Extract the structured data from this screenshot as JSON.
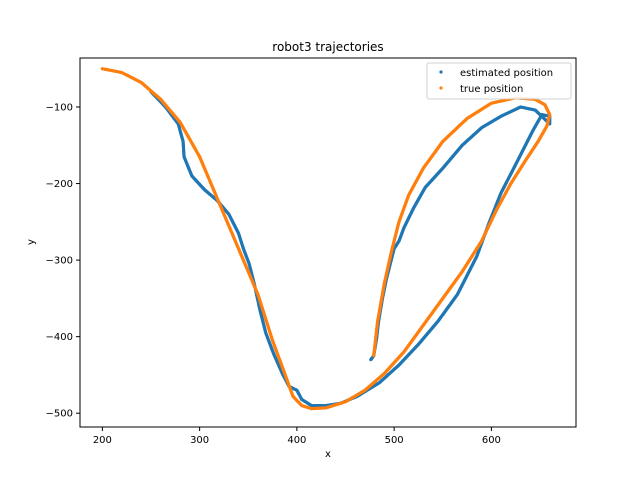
{
  "chart_data": {
    "type": "scatter",
    "title": "robot3 trajectories",
    "xlabel": "x",
    "ylabel": "y",
    "xlim": [
      177,
      687
    ],
    "ylim": [
      -518,
      -36
    ],
    "xticks": [
      200,
      300,
      400,
      500,
      600
    ],
    "yticks": [
      -500,
      -400,
      -300,
      -200,
      -100
    ],
    "xtick_labels": [
      "200",
      "300",
      "400",
      "500",
      "600"
    ],
    "ytick_labels": [
      "−500",
      "−400",
      "−300",
      "−200",
      "−100"
    ],
    "legend_position": "upper right",
    "grid": false,
    "series": [
      {
        "name": "estimated position",
        "color": "#1f77b4",
        "points": [
          [
            250,
            -80
          ],
          [
            265,
            -100
          ],
          [
            278,
            -122
          ],
          [
            283,
            -145
          ],
          [
            284,
            -165
          ],
          [
            292,
            -190
          ],
          [
            305,
            -208
          ],
          [
            318,
            -222
          ],
          [
            330,
            -240
          ],
          [
            340,
            -265
          ],
          [
            345,
            -285
          ],
          [
            351,
            -305
          ],
          [
            356,
            -330
          ],
          [
            362,
            -365
          ],
          [
            368,
            -395
          ],
          [
            376,
            -422
          ],
          [
            385,
            -448
          ],
          [
            392,
            -465
          ],
          [
            400,
            -470
          ],
          [
            405,
            -482
          ],
          [
            415,
            -490
          ],
          [
            430,
            -490
          ],
          [
            445,
            -487
          ],
          [
            462,
            -478
          ],
          [
            485,
            -460
          ],
          [
            505,
            -437
          ],
          [
            525,
            -410
          ],
          [
            545,
            -380
          ],
          [
            565,
            -345
          ],
          [
            585,
            -295
          ],
          [
            598,
            -250
          ],
          [
            610,
            -212
          ],
          [
            623,
            -180
          ],
          [
            633,
            -155
          ],
          [
            643,
            -130
          ],
          [
            652,
            -110
          ],
          [
            660,
            -112
          ],
          [
            660,
            -122
          ],
          [
            645,
            -104
          ],
          [
            630,
            -100
          ],
          [
            610,
            -112
          ],
          [
            590,
            -127
          ],
          [
            570,
            -150
          ],
          [
            550,
            -180
          ],
          [
            532,
            -205
          ],
          [
            520,
            -232
          ],
          [
            510,
            -258
          ],
          [
            505,
            -275
          ],
          [
            500,
            -285
          ],
          [
            496,
            -305
          ],
          [
            492,
            -325
          ],
          [
            488,
            -350
          ],
          [
            484,
            -380
          ],
          [
            482,
            -402
          ],
          [
            479,
            -425
          ],
          [
            476,
            -430
          ]
        ]
      },
      {
        "name": "true position",
        "color": "#ff7f0e",
        "points": [
          [
            200,
            -50
          ],
          [
            220,
            -55
          ],
          [
            240,
            -68
          ],
          [
            260,
            -90
          ],
          [
            280,
            -120
          ],
          [
            300,
            -165
          ],
          [
            315,
            -210
          ],
          [
            330,
            -255
          ],
          [
            345,
            -300
          ],
          [
            360,
            -345
          ],
          [
            375,
            -405
          ],
          [
            388,
            -450
          ],
          [
            396,
            -478
          ],
          [
            405,
            -490
          ],
          [
            415,
            -494
          ],
          [
            430,
            -493
          ],
          [
            450,
            -485
          ],
          [
            470,
            -470
          ],
          [
            490,
            -448
          ],
          [
            510,
            -420
          ],
          [
            530,
            -385
          ],
          [
            550,
            -350
          ],
          [
            570,
            -315
          ],
          [
            590,
            -275
          ],
          [
            605,
            -235
          ],
          [
            620,
            -200
          ],
          [
            635,
            -170
          ],
          [
            648,
            -145
          ],
          [
            657,
            -125
          ],
          [
            660,
            -110
          ],
          [
            655,
            -97
          ],
          [
            645,
            -90
          ],
          [
            625,
            -88
          ],
          [
            600,
            -95
          ],
          [
            575,
            -115
          ],
          [
            550,
            -145
          ],
          [
            530,
            -180
          ],
          [
            515,
            -215
          ],
          [
            505,
            -250
          ],
          [
            497,
            -290
          ],
          [
            490,
            -330
          ],
          [
            483,
            -380
          ],
          [
            479,
            -425
          ]
        ]
      }
    ]
  }
}
